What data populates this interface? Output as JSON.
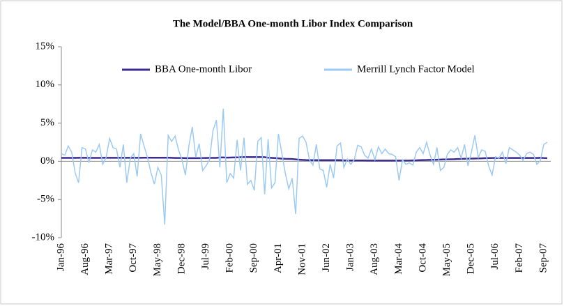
{
  "chart_data": {
    "type": "line",
    "title": "The Model/BBA One-month Libor Index Comparison",
    "categories": [
      "Jan-96",
      null,
      null,
      null,
      null,
      null,
      null,
      "Aug-96",
      null,
      null,
      null,
      null,
      null,
      null,
      "Mar-97",
      null,
      null,
      null,
      null,
      null,
      null,
      "Oct-97",
      null,
      null,
      null,
      null,
      null,
      null,
      "May-98",
      null,
      null,
      null,
      null,
      null,
      null,
      "Dec-98",
      null,
      null,
      null,
      null,
      null,
      null,
      "Jul-99",
      null,
      null,
      null,
      null,
      null,
      null,
      "Feb-00",
      null,
      null,
      null,
      null,
      null,
      null,
      "Sep-00",
      null,
      null,
      null,
      null,
      null,
      null,
      "Apr-01",
      null,
      null,
      null,
      null,
      null,
      null,
      "Nov-01",
      null,
      null,
      null,
      null,
      null,
      null,
      "Jun-02",
      null,
      null,
      null,
      null,
      null,
      null,
      "Jan-03",
      null,
      null,
      null,
      null,
      null,
      null,
      "Aug-03",
      null,
      null,
      null,
      null,
      null,
      null,
      "Mar-04",
      null,
      null,
      null,
      null,
      null,
      null,
      "Oct-04",
      null,
      null,
      null,
      null,
      null,
      null,
      "May-05",
      null,
      null,
      null,
      null,
      null,
      null,
      "Dec-05",
      null,
      null,
      null,
      null,
      null,
      null,
      "Jul-06",
      null,
      null,
      null,
      null,
      null,
      null,
      "Feb-07",
      null,
      null,
      null,
      null,
      null,
      null,
      "Sep-07",
      null
    ],
    "series": [
      {
        "name": "BBA One-month Libor",
        "color": "#3b2a8f",
        "width": 2.5,
        "values": [
          0.45,
          0.45,
          0.45,
          0.45,
          0.45,
          0.46,
          0.46,
          0.46,
          0.45,
          0.45,
          0.45,
          0.45,
          0.46,
          0.46,
          0.46,
          0.46,
          0.46,
          0.46,
          0.46,
          0.46,
          0.46,
          0.46,
          0.46,
          0.46,
          0.47,
          0.47,
          0.47,
          0.47,
          0.47,
          0.47,
          0.47,
          0.47,
          0.46,
          0.44,
          0.43,
          0.43,
          0.41,
          0.41,
          0.41,
          0.41,
          0.41,
          0.43,
          0.44,
          0.45,
          0.45,
          0.45,
          0.5,
          0.5,
          0.48,
          0.49,
          0.5,
          0.51,
          0.54,
          0.55,
          0.55,
          0.55,
          0.55,
          0.55,
          0.55,
          0.54,
          0.47,
          0.45,
          0.42,
          0.39,
          0.34,
          0.32,
          0.31,
          0.3,
          0.25,
          0.21,
          0.18,
          0.16,
          0.15,
          0.15,
          0.15,
          0.15,
          0.15,
          0.15,
          0.15,
          0.15,
          0.15,
          0.15,
          0.12,
          0.12,
          0.11,
          0.11,
          0.11,
          0.11,
          0.11,
          0.09,
          0.09,
          0.09,
          0.09,
          0.09,
          0.09,
          0.09,
          0.09,
          0.09,
          0.09,
          0.09,
          0.09,
          0.1,
          0.12,
          0.13,
          0.15,
          0.16,
          0.17,
          0.19,
          0.2,
          0.21,
          0.23,
          0.24,
          0.25,
          0.27,
          0.28,
          0.3,
          0.31,
          0.33,
          0.34,
          0.36,
          0.37,
          0.38,
          0.39,
          0.41,
          0.42,
          0.43,
          0.44,
          0.44,
          0.44,
          0.44,
          0.44,
          0.44,
          0.44,
          0.44,
          0.44,
          0.44,
          0.44,
          0.44,
          0.44,
          0.46,
          0.43,
          0.41
        ]
      },
      {
        "name": "Merrill Lynch Factor Model",
        "color": "#9dcaf4",
        "width": 1.5,
        "values": [
          1.0,
          0.8,
          2.0,
          1.2,
          -1.5,
          -2.8,
          1.8,
          1.6,
          -0.2,
          1.5,
          1.2,
          2.2,
          -0.4,
          0.5,
          3.0,
          1.8,
          1.6,
          -0.8,
          2.2,
          -2.8,
          0.4,
          1.0,
          -2.0,
          3.6,
          2.0,
          0.5,
          -1.5,
          -3.0,
          -0.8,
          -1.8,
          -8.3,
          3.4,
          2.6,
          3.3,
          1.5,
          0.2,
          -1.8,
          2.0,
          4.5,
          0.5,
          2.3,
          -1.2,
          -0.6,
          0.2,
          4.0,
          5.4,
          -0.8,
          6.9,
          -2.8,
          -1.6,
          -2.2,
          2.8,
          -1.2,
          3.1,
          -3.0,
          -2.5,
          -3.8,
          2.6,
          3.1,
          -4.3,
          2.9,
          -3.5,
          -2.8,
          3.6,
          1.0,
          -1.6,
          -3.6,
          -2.2,
          -6.9,
          3.0,
          3.3,
          2.5,
          0.2,
          -0.5,
          2.2,
          -1.0,
          -1.2,
          -3.4,
          -0.4,
          -2.2,
          2.0,
          2.4,
          -0.8,
          0.3,
          -0.4,
          0.2,
          2.1,
          1.9,
          0.8,
          0.4,
          1.6,
          0.2,
          1.9,
          1.0,
          1.6,
          1.0,
          0.9,
          0.6,
          -2.5,
          0.2,
          -0.4,
          -0.2,
          -0.5,
          1.2,
          1.8,
          1.0,
          2.5,
          0.8,
          -0.4,
          1.8,
          -1.2,
          -0.8,
          0.9,
          1.5,
          1.2,
          1.8,
          0.4,
          2.2,
          -0.6,
          1.2,
          3.4,
          0.5,
          1.5,
          1.3,
          -0.6,
          -1.8,
          0.6,
          0.4,
          1.2,
          -0.3,
          1.8,
          1.5,
          1.2,
          0.8,
          0.1,
          1.0,
          1.2,
          0.9,
          -0.4,
          0.1,
          2.2,
          2.5
        ]
      }
    ],
    "ylim": [
      -10,
      15
    ],
    "yticks": [
      {
        "value": -10,
        "label": "-10%"
      },
      {
        "value": -5,
        "label": "-5%"
      },
      {
        "value": 0,
        "label": "0%"
      },
      {
        "value": 5,
        "label": "5%"
      },
      {
        "value": 10,
        "label": "10%"
      },
      {
        "value": 15,
        "label": "15%"
      }
    ],
    "legend": "top"
  }
}
